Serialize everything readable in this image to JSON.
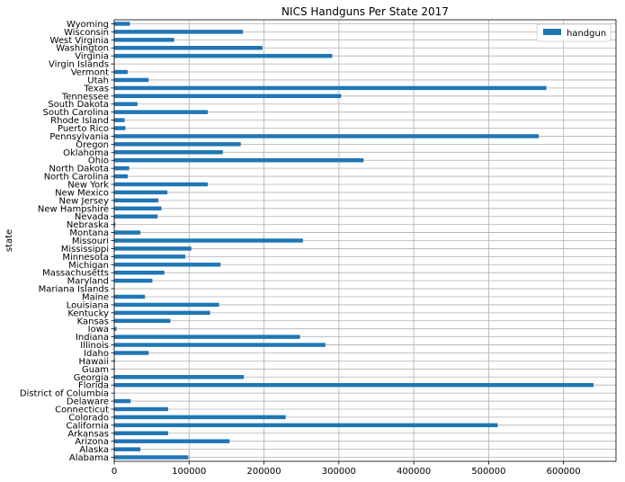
{
  "chart_data": {
    "type": "bar",
    "orientation": "horizontal",
    "title": "NICS Handguns Per State 2017",
    "ylabel": "state",
    "xlabel": "",
    "xlim": [
      0,
      670000
    ],
    "xticks": [
      0,
      100000,
      200000,
      300000,
      400000,
      500000,
      600000
    ],
    "xtick_labels": [
      "0",
      "100000",
      "200000",
      "300000",
      "400000",
      "500000",
      "600000"
    ],
    "grid": true,
    "legend_position": "top-right",
    "bar_color": "#1f77b4",
    "categories": [
      "Alabama",
      "Alaska",
      "Arizona",
      "Arkansas",
      "California",
      "Colorado",
      "Connecticut",
      "Delaware",
      "District of Columbia",
      "Florida",
      "Georgia",
      "Guam",
      "Hawaii",
      "Idaho",
      "Illinois",
      "Indiana",
      "Iowa",
      "Kansas",
      "Kentucky",
      "Louisiana",
      "Maine",
      "Mariana Islands",
      "Maryland",
      "Massachusetts",
      "Michigan",
      "Minnesota",
      "Mississippi",
      "Missouri",
      "Montana",
      "Nebraska",
      "Nevada",
      "New Hampshire",
      "New Jersey",
      "New Mexico",
      "New York",
      "North Carolina",
      "North Dakota",
      "Ohio",
      "Oklahoma",
      "Oregon",
      "Pennsylvania",
      "Puerto Rico",
      "Rhode Island",
      "South Carolina",
      "South Dakota",
      "Tennessee",
      "Texas",
      "Utah",
      "Vermont",
      "Virgin Islands",
      "Virginia",
      "Washington",
      "West Virginia",
      "Wisconsin",
      "Wyoming"
    ],
    "series": [
      {
        "name": "handgun",
        "values": [
          99000,
          35000,
          154000,
          72000,
          512000,
          229000,
          72000,
          22000,
          500,
          640000,
          173000,
          300,
          800,
          46000,
          282000,
          248000,
          3000,
          75000,
          128000,
          140000,
          41000,
          100,
          51000,
          67000,
          142000,
          95000,
          103000,
          252000,
          35000,
          1500,
          58000,
          63000,
          59000,
          71000,
          125000,
          18000,
          20000,
          333000,
          145000,
          169000,
          567000,
          15000,
          14000,
          125000,
          31000,
          303000,
          577000,
          46000,
          18000,
          300,
          291000,
          198000,
          80000,
          172000,
          21000
        ]
      }
    ]
  }
}
